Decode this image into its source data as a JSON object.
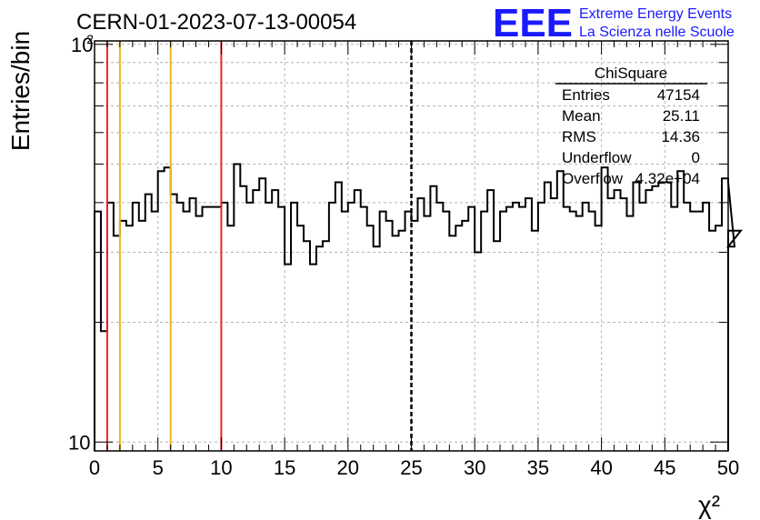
{
  "header": {
    "run_title": "CERN-01-2023-07-13-00054",
    "logo_mark": "EEE",
    "logo_line1": "Extreme Energy Events",
    "logo_line2": "La Scienza nelle Scuole"
  },
  "stats_box": {
    "name": "ChiSquare",
    "rows": [
      {
        "label": "Entries",
        "value": "47154"
      },
      {
        "label": "Mean",
        "value": "25.11"
      },
      {
        "label": "RMS",
        "value": "14.36"
      },
      {
        "label": "Underflow",
        "value": "0"
      },
      {
        "label": "Overflow",
        "value": "4.32e+04"
      }
    ]
  },
  "chart_data": {
    "type": "bar",
    "style": "step-histogram",
    "xlabel": "χ²",
    "ylabel": "Entries/bin",
    "xlim": [
      0,
      50
    ],
    "ylim": [
      9.5,
      102
    ],
    "y_scale": "log",
    "grid": true,
    "bin_width": 0.5,
    "x_ticks": [
      0,
      5,
      10,
      15,
      20,
      25,
      30,
      35,
      40,
      45,
      50
    ],
    "x_tick_labels": [
      "0",
      "5",
      "10",
      "15",
      "20",
      "25",
      "30",
      "35",
      "40",
      "45",
      "50"
    ],
    "y_tick_labels": [
      {
        "value": 100,
        "base": "10",
        "exp": "2"
      },
      {
        "value": 10,
        "base": "10",
        "exp": ""
      }
    ],
    "values": [
      38,
      19,
      40,
      33,
      36,
      35,
      40,
      36,
      42,
      38,
      48,
      49,
      42,
      40,
      38,
      41,
      37,
      39,
      39,
      39,
      40,
      35,
      50,
      44,
      40,
      43,
      46,
      40,
      43,
      39,
      28,
      40,
      35,
      32,
      28,
      31,
      32,
      40,
      45,
      38,
      40,
      43,
      39,
      35,
      31,
      38,
      36,
      33,
      34,
      38,
      36,
      41,
      37,
      44,
      40,
      38,
      33,
      35,
      36,
      39,
      30,
      38,
      43,
      32,
      38,
      39,
      40,
      39,
      41,
      34,
      40,
      45,
      41,
      48,
      39,
      38,
      37,
      40,
      38,
      35,
      49,
      41,
      43,
      41,
      37,
      45,
      40,
      43,
      44,
      45,
      45,
      39,
      48,
      40,
      38,
      38,
      40,
      34,
      35,
      46,
      45,
      31,
      34
    ],
    "vertical_lines": [
      {
        "x": 1,
        "color": "#e8262a",
        "style": "solid"
      },
      {
        "x": 2,
        "color": "#f2b418",
        "style": "solid"
      },
      {
        "x": 6,
        "color": "#f2b418",
        "style": "solid"
      },
      {
        "x": 10,
        "color": "#e8262a",
        "style": "solid"
      },
      {
        "x": 25,
        "color": "#000000",
        "style": "dashed"
      }
    ]
  }
}
